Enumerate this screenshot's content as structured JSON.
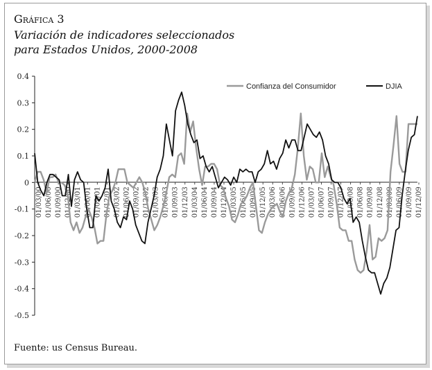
{
  "figure": {
    "label": "Gráfica 3",
    "title_line1": "Variación de indicadores seleccionados",
    "title_line2": "para Estados Unidos, 2000-2008",
    "source": "Fuente: us Census Bureau."
  },
  "chart_data": {
    "type": "line",
    "title": "Variación de indicadores seleccionados para Estados Unidos, 2000-2008",
    "xlabel": "",
    "ylabel": "",
    "ylim": [
      -0.5,
      0.4
    ],
    "yticks": [
      0.4,
      0.3,
      0.2,
      0.1,
      0,
      -0.1,
      -0.2,
      -0.3,
      -0.4,
      -0.5
    ],
    "ytick_labels": [
      "0.4",
      "0.3",
      "0.2",
      "0.1",
      "0",
      "-0.1",
      "-0.2",
      "-0.3",
      "-0.4",
      "-0.5"
    ],
    "xtick_labels": [
      "01/03/00",
      "01/06/00",
      "01/09/00",
      "01/12/00",
      "01/03/01",
      "01/06/01",
      "01/09/01",
      "01/12/01",
      "01/03/02",
      "01/06/02",
      "01/09/02",
      "01/12/02",
      "01/03/03",
      "01/06/03",
      "01/09/03",
      "01/12/03",
      "01/03/04",
      "01/06/04",
      "01/09/04",
      "01/12/04",
      "01/03/05",
      "01/06/05",
      "01/09/05",
      "01/12/05",
      "01/03/06",
      "01/06/06",
      "01/09/06",
      "01/12/06",
      "01/03/07",
      "01/06/07",
      "01/09/07",
      "01/12/07",
      "01/03/08",
      "01/06/08",
      "01/09/08",
      "01/12/08",
      "01/03/09",
      "01/06/09",
      "01/09/09",
      "01/12/09"
    ],
    "grid": false,
    "legend_position": "top-right",
    "series": [
      {
        "name": "Confianza del Consumidor",
        "color": "#9a9a9a",
        "values": [
          0.0,
          0.04,
          0.04,
          0.01,
          -0.04,
          0.02,
          0.02,
          0.03,
          0.0,
          0.0,
          -0.01,
          -0.04,
          -0.15,
          -0.18,
          -0.15,
          -0.19,
          -0.17,
          -0.13,
          -0.1,
          -0.13,
          -0.17,
          -0.23,
          -0.22,
          -0.22,
          -0.12,
          -0.05,
          -0.03,
          0.0,
          0.05,
          0.05,
          0.05,
          0.0,
          -0.01,
          -0.02,
          0.0,
          0.02,
          0.0,
          -0.04,
          -0.1,
          -0.14,
          -0.18,
          -0.16,
          -0.13,
          -0.09,
          -0.04,
          0.02,
          0.03,
          0.02,
          0.1,
          0.11,
          0.07,
          0.26,
          0.19,
          0.23,
          0.13,
          0.05,
          -0.01,
          0.06,
          0.06,
          0.07,
          0.07,
          0.05,
          -0.01,
          -0.02,
          -0.06,
          -0.09,
          -0.14,
          -0.15,
          -0.12,
          -0.08,
          -0.07,
          -0.05,
          -0.02,
          0.0,
          -0.09,
          -0.18,
          -0.19,
          -0.15,
          -0.12,
          -0.1,
          -0.09,
          -0.08,
          -0.11,
          -0.13,
          -0.07,
          -0.04,
          -0.02,
          0.03,
          0.13,
          0.26,
          0.1,
          0.01,
          0.06,
          0.05,
          0.0,
          0.0,
          0.11,
          0.02,
          0.06,
          0.02,
          -0.01,
          -0.08,
          -0.17,
          -0.18,
          -0.18,
          -0.22,
          -0.22,
          -0.29,
          -0.33,
          -0.34,
          -0.33,
          -0.26,
          -0.16,
          -0.29,
          -0.28,
          -0.21,
          -0.22,
          -0.21,
          -0.18,
          0.04,
          0.14,
          0.25,
          0.07,
          0.04,
          0.04,
          0.22,
          0.22,
          0.22,
          0.22
        ]
      },
      {
        "name": "DJIA",
        "color": "#111111",
        "values": [
          0.11,
          0.0,
          -0.03,
          -0.05,
          0.0,
          0.03,
          0.03,
          0.02,
          0.01,
          -0.05,
          -0.05,
          0.03,
          -0.09,
          0.01,
          0.04,
          0.01,
          0.0,
          -0.1,
          -0.17,
          -0.17,
          -0.05,
          -0.07,
          -0.05,
          -0.02,
          0.05,
          -0.07,
          -0.1,
          -0.15,
          -0.17,
          -0.13,
          -0.14,
          -0.07,
          -0.1,
          -0.16,
          -0.19,
          -0.22,
          -0.23,
          -0.15,
          -0.1,
          -0.05,
          0.02,
          0.05,
          0.1,
          0.22,
          0.16,
          0.1,
          0.27,
          0.31,
          0.34,
          0.29,
          0.22,
          0.18,
          0.15,
          0.16,
          0.09,
          0.1,
          0.06,
          0.04,
          0.06,
          0.02,
          -0.02,
          0.0,
          0.02,
          0.01,
          -0.01,
          0.02,
          0.0,
          0.05,
          0.04,
          0.05,
          0.04,
          0.04,
          0.0,
          0.04,
          0.05,
          0.07,
          0.12,
          0.07,
          0.08,
          0.05,
          0.09,
          0.11,
          0.16,
          0.13,
          0.16,
          0.16,
          0.12,
          0.12,
          0.17,
          0.22,
          0.2,
          0.18,
          0.17,
          0.19,
          0.16,
          0.1,
          0.07,
          0.01,
          0.0,
          0.0,
          -0.02,
          -0.06,
          -0.08,
          -0.06,
          -0.15,
          -0.13,
          -0.15,
          -0.22,
          -0.28,
          -0.33,
          -0.34,
          -0.34,
          -0.38,
          -0.42,
          -0.38,
          -0.36,
          -0.32,
          -0.25,
          -0.18,
          -0.17,
          -0.05,
          0.04,
          0.12,
          0.17,
          0.18,
          0.25
        ]
      }
    ]
  }
}
